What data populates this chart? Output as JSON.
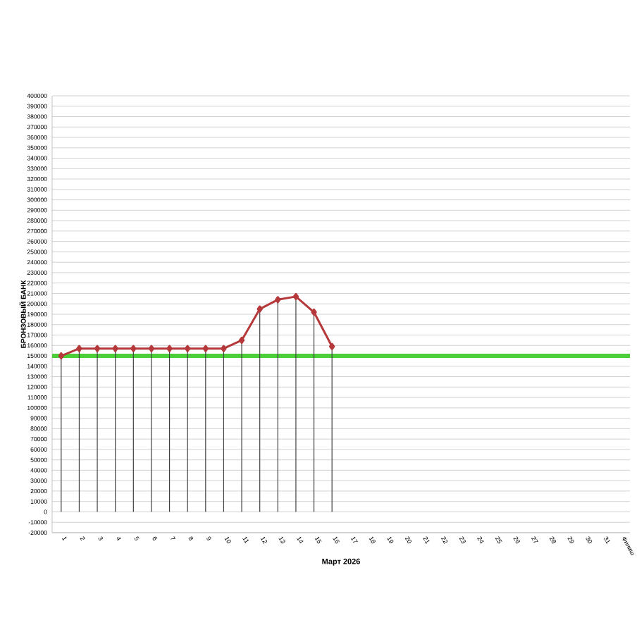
{
  "chart_data": {
    "type": "line",
    "xlabel": "Март 2026",
    "ylabel": "БРОНЗОВЫЙ БАНК",
    "categories": [
      "1",
      "2",
      "3",
      "4",
      "5",
      "6",
      "7",
      "8",
      "9",
      "10",
      "11",
      "12",
      "13",
      "14",
      "15",
      "16",
      "17",
      "18",
      "19",
      "20",
      "21",
      "22",
      "23",
      "24",
      "25",
      "26",
      "27",
      "28",
      "29",
      "30",
      "31",
      "Финиш"
    ],
    "series": [
      {
        "type": "bar",
        "color": "#404040",
        "values": [
          150000,
          157000,
          157000,
          157000,
          157000,
          157000,
          157000,
          157000,
          157000,
          157000,
          165000,
          195000,
          204000,
          207000,
          192000,
          159000,
          null,
          null,
          null,
          null,
          null,
          null,
          null,
          null,
          null,
          null,
          null,
          null,
          null,
          null,
          null,
          null
        ]
      },
      {
        "color": "#b5383a",
        "values": [
          150000,
          157000,
          157000,
          157000,
          157000,
          157000,
          157000,
          157000,
          157000,
          157000,
          165000,
          195000,
          204000,
          207000,
          192000,
          159000,
          null,
          null,
          null,
          null,
          null,
          null,
          null,
          null,
          null,
          null,
          null,
          null,
          null,
          null,
          null,
          null
        ]
      }
    ],
    "ylim": [
      -20000,
      400000
    ],
    "yticks": [
      -20000,
      -10000,
      0,
      10000,
      20000,
      30000,
      40000,
      50000,
      60000,
      70000,
      80000,
      90000,
      100000,
      110000,
      120000,
      130000,
      140000,
      150000,
      160000,
      170000,
      180000,
      190000,
      200000,
      210000,
      220000,
      230000,
      240000,
      250000,
      260000,
      270000,
      280000,
      290000,
      300000,
      310000,
      320000,
      330000,
      340000,
      350000,
      360000,
      370000,
      380000,
      390000,
      400000
    ],
    "ref_lines": [
      {
        "axis": "y",
        "value": 150000,
        "color": "#4ccd3a"
      }
    ],
    "grid": "y",
    "marker": "diamond",
    "line_style": "solid"
  }
}
